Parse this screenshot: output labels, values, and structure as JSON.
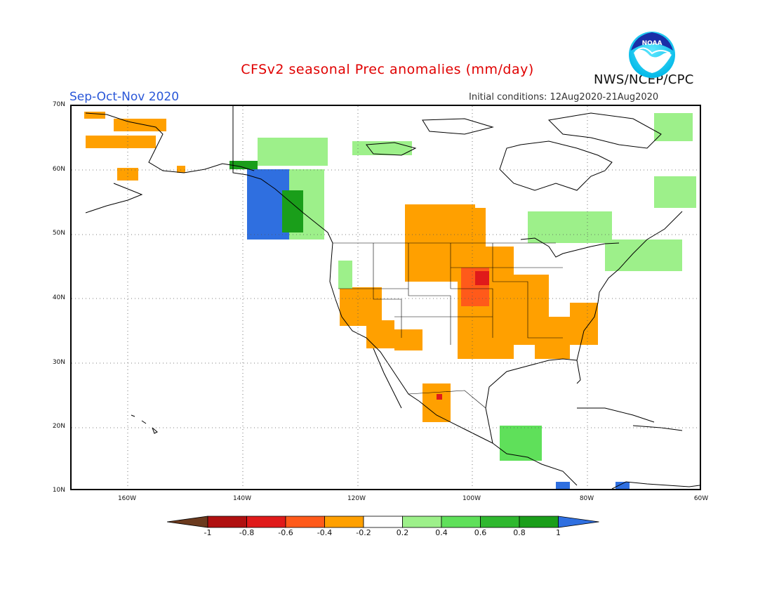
{
  "title": "CFSv2 seasonal Prec anomalies (mm/day)",
  "season": "Sep-Oct-Nov 2020",
  "initial_conditions": "Initial conditions: 12Aug2020-21Aug2020",
  "agency": "NWS/NCEP/CPC",
  "logo_text": "NOAA",
  "lat_labels": [
    "70N",
    "60N",
    "50N",
    "40N",
    "30N",
    "20N",
    "10N"
  ],
  "lon_labels": [
    "160W",
    "140W",
    "120W",
    "100W",
    "80W",
    "60W"
  ],
  "colorbar": {
    "labels": [
      "-1",
      "-0.8",
      "-0.6",
      "-0.4",
      "-0.2",
      "0.2",
      "0.4",
      "0.6",
      "0.8",
      "1"
    ],
    "colors": [
      "#6b3a1e",
      "#b01010",
      "#e01a1a",
      "#ff5a1a",
      "#ffa000",
      "#ffffff",
      "#9df08a",
      "#5fe05a",
      "#2fb82f",
      "#1a9e1a",
      "#2f6fe0"
    ]
  },
  "colors": {
    "title": "#e00000",
    "season": "#2a57d8",
    "orange": "#ffa000",
    "red_orange": "#ff5a1a",
    "red": "#e01a1a",
    "light_green": "#9df08a",
    "green": "#5fe05a",
    "dark_green": "#1a9e1a",
    "blue": "#2f6fe0"
  }
}
